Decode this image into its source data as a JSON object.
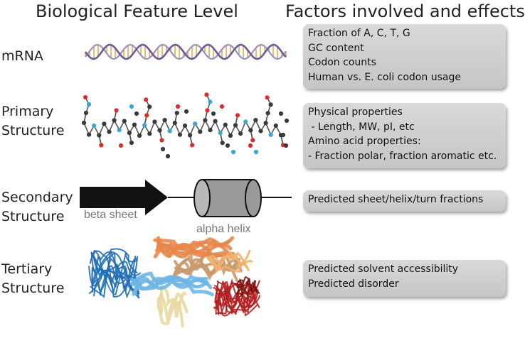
{
  "headers": {
    "left": "Biological Feature Level",
    "right": "Factors involved and effects"
  },
  "levels": [
    {
      "lines": [
        "mRNA"
      ]
    },
    {
      "lines": [
        "Primary",
        "Structure"
      ]
    },
    {
      "lines": [
        "Secondary",
        "Structure"
      ]
    },
    {
      "lines": [
        "Tertiary",
        "Structure"
      ]
    }
  ],
  "boxes": [
    {
      "lines": [
        "Fraction of A, C, T, G",
        "GC content",
        "Codon counts",
        "Human vs. E. coli codon usage"
      ]
    },
    {
      "lines": [
        "Physical properties",
        " - Length, MW, pI, etc",
        "Amino acid properties:",
        "- Fraction polar, fraction aromatic etc."
      ]
    },
    {
      "lines": [
        "Predicted sheet/helix/turn fractions"
      ]
    },
    {
      "lines": [
        "Predicted solvent accessibility",
        "Predicted disorder"
      ]
    }
  ],
  "secondary": {
    "beta_label": "beta sheet",
    "alpha_label": "alpha helix"
  },
  "colors": {
    "dna_strand": "#6a5a9e",
    "dna_rungs": "#e0a030",
    "atom_carbon": "#3a3a3a",
    "atom_oxygen": "#d8312c",
    "atom_nitrogen": "#3ba6d0",
    "cylinder": "#9a9a9a",
    "arrow": "#111111",
    "box_bg": "#d2d2d2"
  },
  "icons": [
    "dna-helix-icon",
    "molecule-chain-icon",
    "beta-arrow-icon",
    "alpha-cylinder-icon",
    "protein-ribbon-icon"
  ]
}
